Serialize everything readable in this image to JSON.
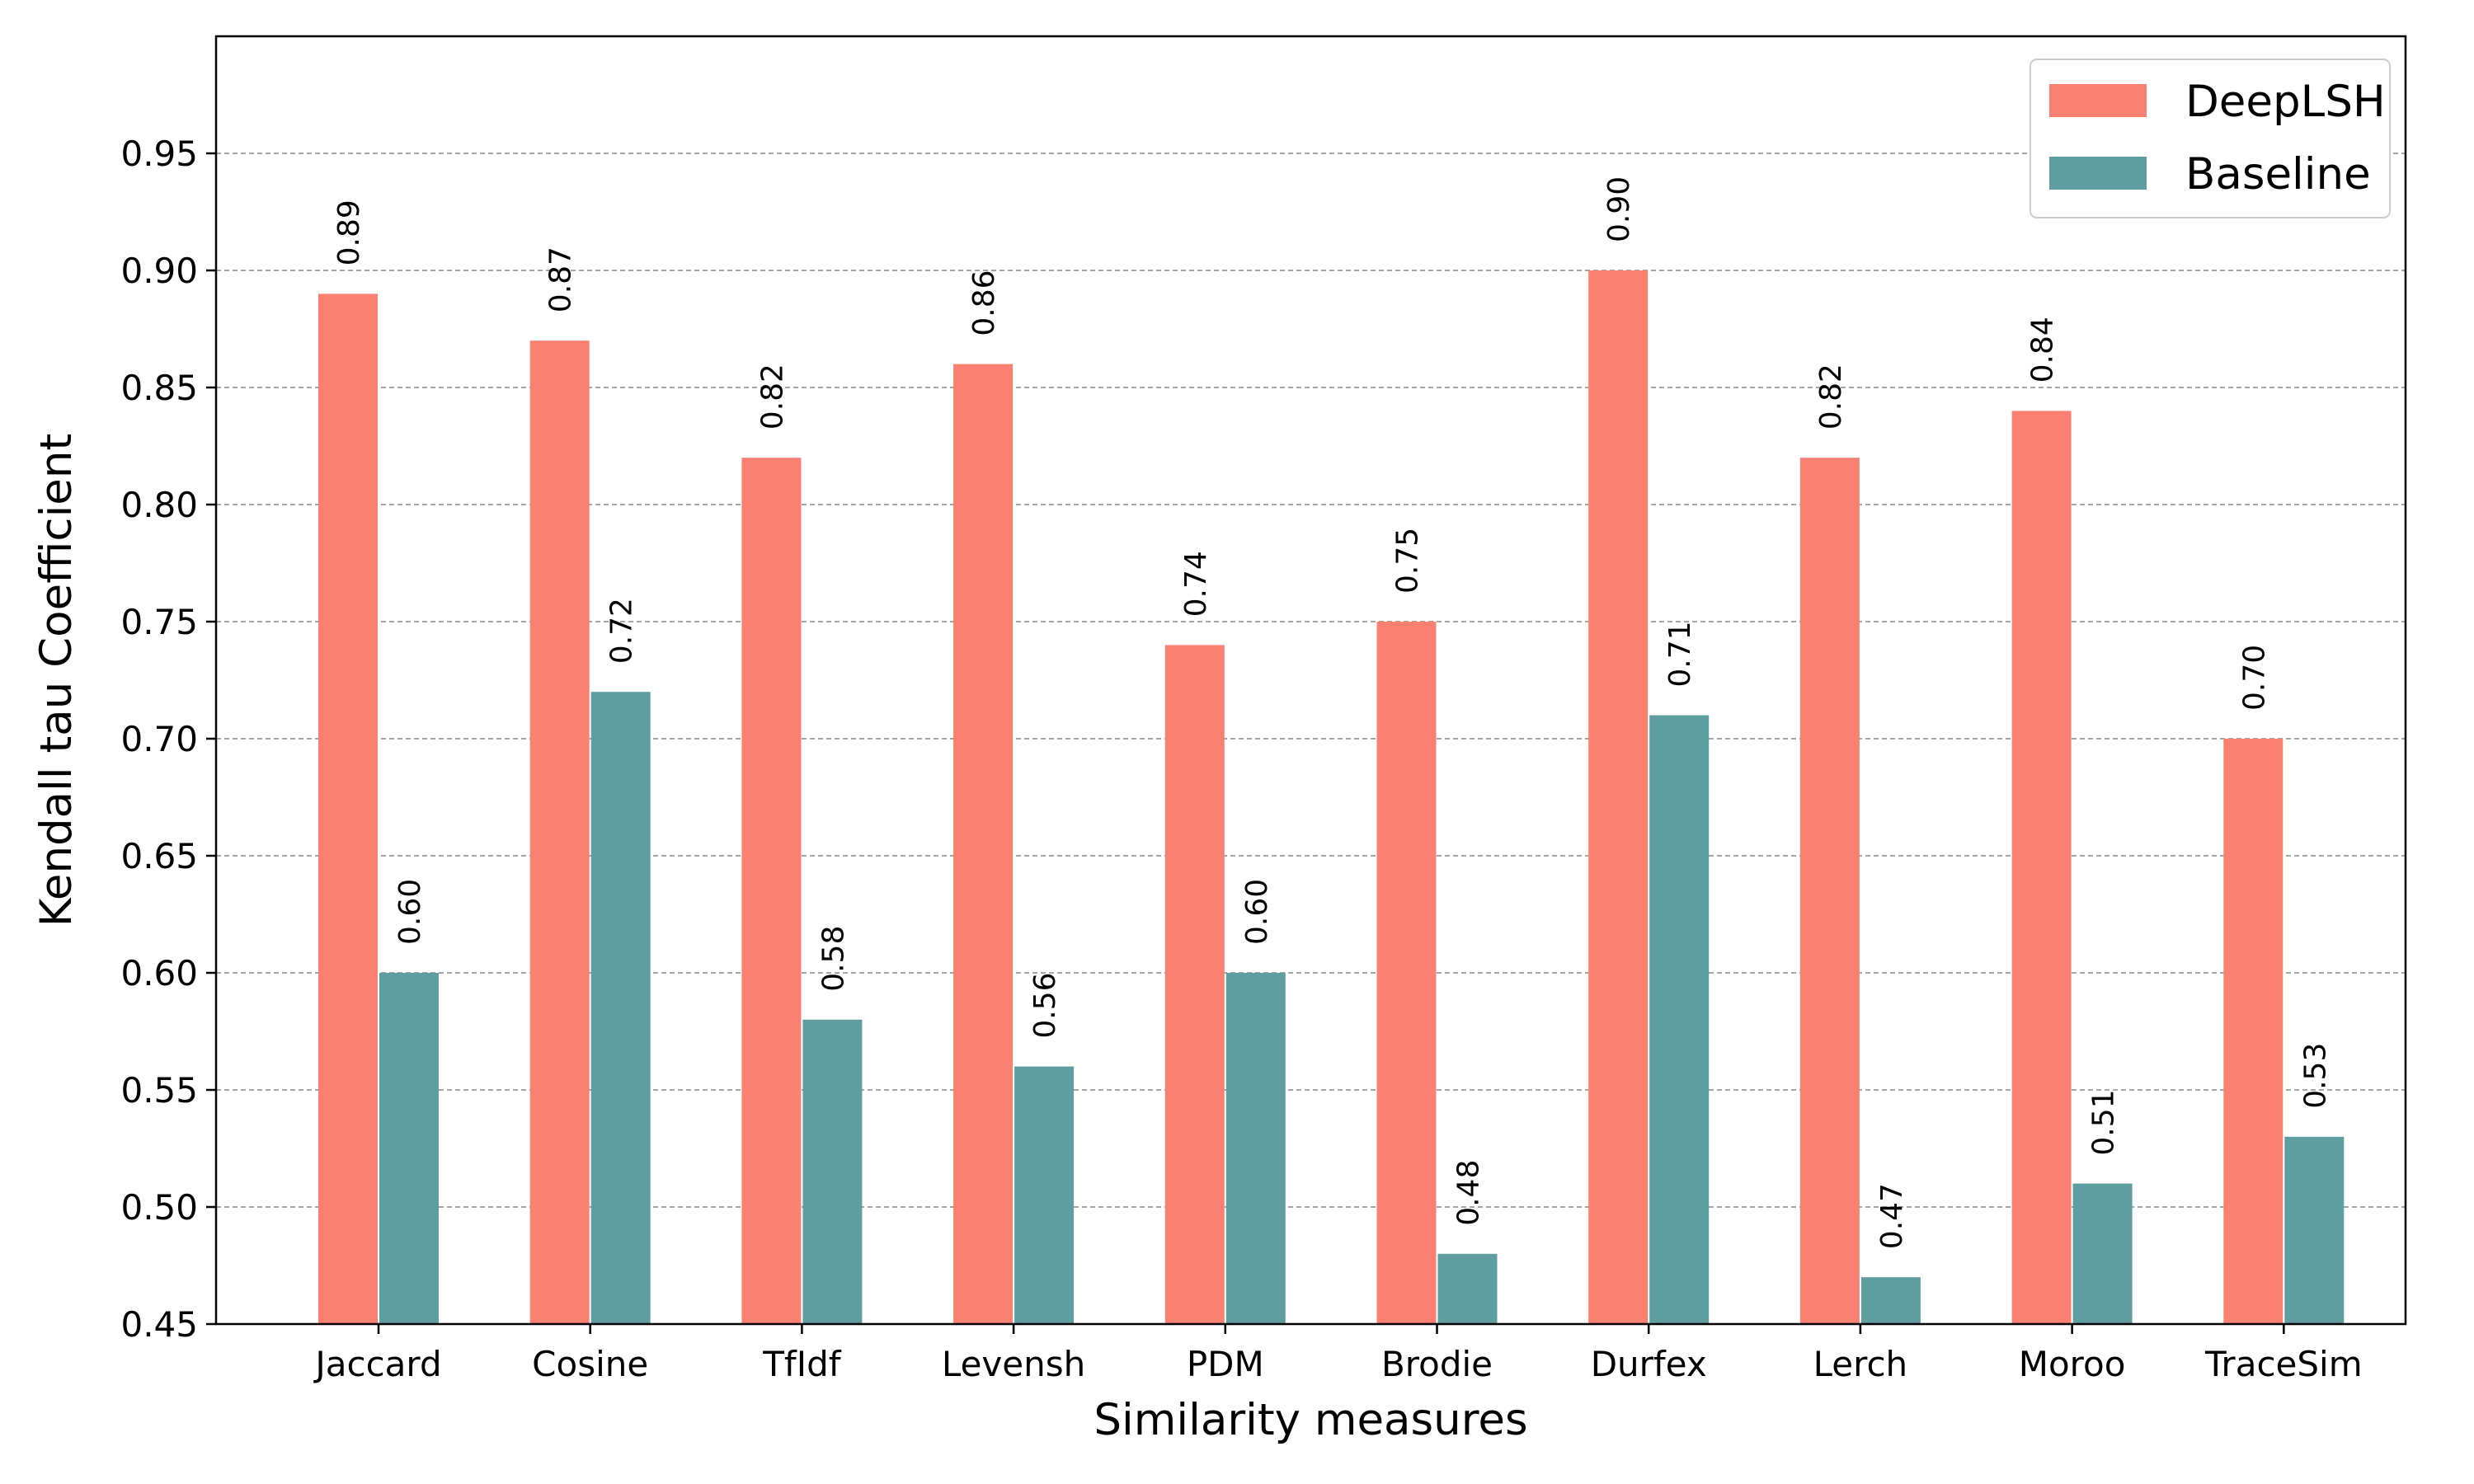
{
  "chart_data": {
    "type": "bar",
    "categories": [
      "Jaccard",
      "Cosine",
      "TfIdf",
      "Levensh",
      "PDM",
      "Brodie",
      "Durfex",
      "Lerch",
      "Moroo",
      "TraceSim"
    ],
    "series": [
      {
        "name": "DeepLSH",
        "color": "#fa8072",
        "values": [
          0.89,
          0.87,
          0.82,
          0.86,
          0.74,
          0.75,
          0.9,
          0.82,
          0.84,
          0.7
        ],
        "labels": [
          "0.89",
          "0.87",
          "0.82",
          "0.86",
          "0.74",
          "0.75",
          "0.90",
          "0.82",
          "0.84",
          "0.70"
        ]
      },
      {
        "name": "Baseline",
        "color": "#5f9ea0",
        "values": [
          0.6,
          0.72,
          0.58,
          0.56,
          0.6,
          0.48,
          0.71,
          0.47,
          0.51,
          0.53
        ],
        "labels": [
          "0.60",
          "0.72",
          "0.58",
          "0.56",
          "0.60",
          "0.48",
          "0.71",
          "0.47",
          "0.51",
          "0.53"
        ]
      }
    ],
    "xlabel": "Similarity measures",
    "ylabel": "Kendall tau Coefficient",
    "ylim": [
      0.45,
      1.0
    ],
    "yticks": [
      0.45,
      0.5,
      0.55,
      0.6,
      0.65,
      0.7,
      0.75,
      0.8,
      0.85,
      0.9,
      0.95
    ],
    "ytick_labels": [
      "0.45",
      "0.50",
      "0.55",
      "0.60",
      "0.65",
      "0.70",
      "0.75",
      "0.80",
      "0.85",
      "0.90",
      "0.95"
    ],
    "grid": "horizontal dashed",
    "legend_position": "top-right"
  }
}
